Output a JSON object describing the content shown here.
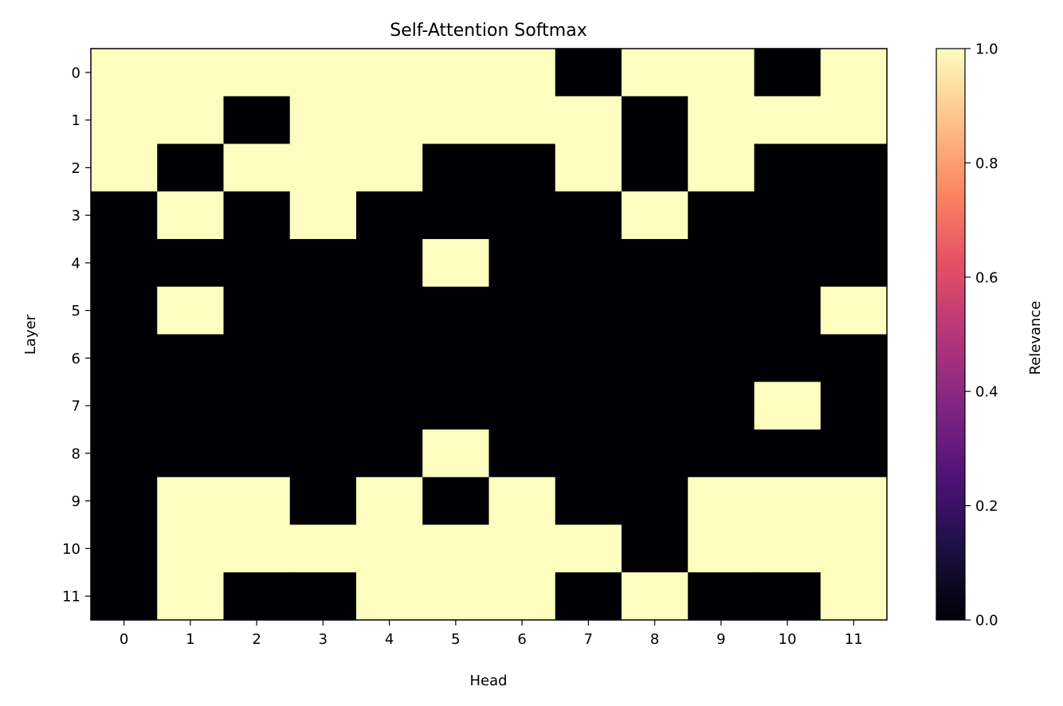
{
  "chart_data": {
    "type": "heatmap",
    "title": "Self-Attention Softmax",
    "xlabel": "Head",
    "ylabel": "Layer",
    "x_categories": [
      "0",
      "1",
      "2",
      "3",
      "4",
      "5",
      "6",
      "7",
      "8",
      "9",
      "10",
      "11"
    ],
    "y_categories": [
      "0",
      "1",
      "2",
      "3",
      "4",
      "5",
      "6",
      "7",
      "8",
      "9",
      "10",
      "11"
    ],
    "values": [
      [
        1,
        1,
        1,
        1,
        1,
        1,
        1,
        0,
        1,
        1,
        0,
        1
      ],
      [
        1,
        1,
        0,
        1,
        1,
        1,
        1,
        1,
        0,
        1,
        1,
        1
      ],
      [
        1,
        0,
        1,
        1,
        1,
        0,
        0,
        1,
        0,
        1,
        0,
        0
      ],
      [
        0,
        1,
        0,
        1,
        0,
        0,
        0,
        0,
        1,
        0,
        0,
        0
      ],
      [
        0,
        0,
        0,
        0,
        0,
        1,
        0,
        0,
        0,
        0,
        0,
        0
      ],
      [
        0,
        1,
        0,
        0,
        0,
        0,
        0,
        0,
        0,
        0,
        0,
        1
      ],
      [
        0,
        0,
        0,
        0,
        0,
        0,
        0,
        0,
        0,
        0,
        0,
        0
      ],
      [
        0,
        0,
        0,
        0,
        0,
        0,
        0,
        0,
        0,
        0,
        1,
        0
      ],
      [
        0,
        0,
        0,
        0,
        0,
        1,
        0,
        0,
        0,
        0,
        0,
        0
      ],
      [
        0,
        1,
        1,
        0,
        1,
        0,
        1,
        0,
        0,
        1,
        1,
        1
      ],
      [
        0,
        1,
        1,
        1,
        1,
        1,
        1,
        1,
        0,
        1,
        1,
        1
      ],
      [
        0,
        1,
        0,
        0,
        1,
        1,
        1,
        0,
        1,
        0,
        0,
        1
      ]
    ],
    "colorbar": {
      "label": "Relevance",
      "colormap": "magma",
      "range": [
        0.0,
        1.0
      ],
      "ticks": [
        "0.0",
        "0.2",
        "0.4",
        "0.6",
        "0.8",
        "1.0"
      ]
    },
    "colors": {
      "low": "#000004",
      "high": "#fcfdbf"
    }
  }
}
